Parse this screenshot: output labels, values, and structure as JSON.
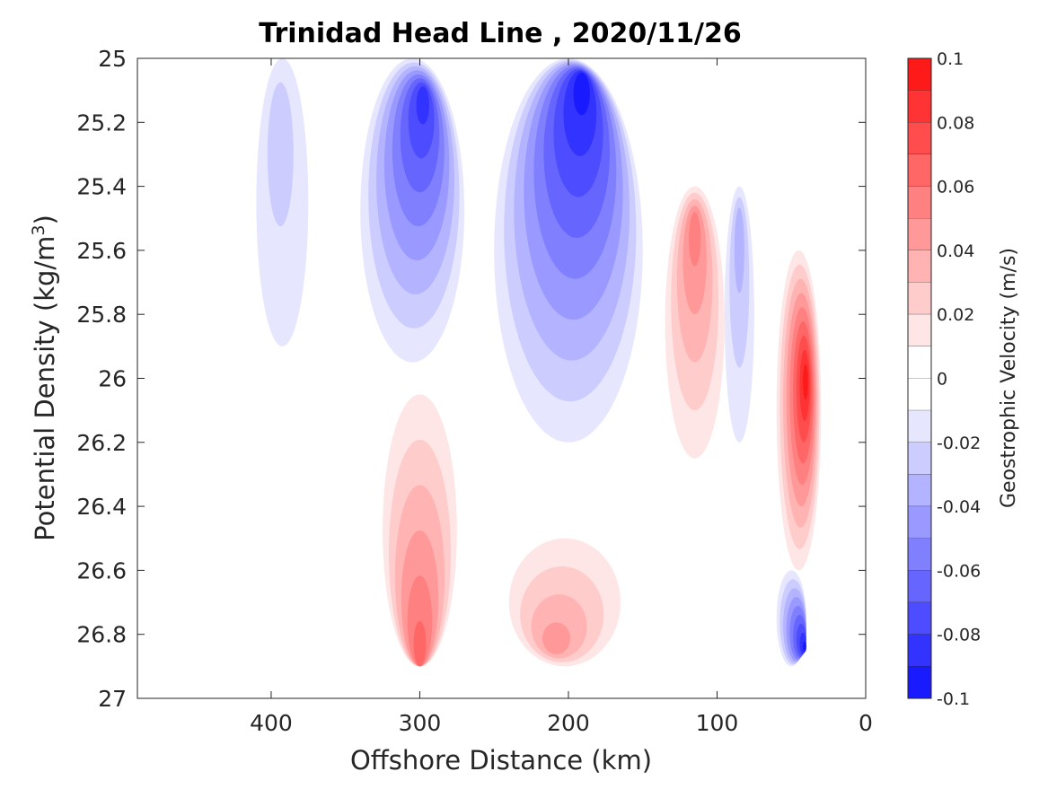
{
  "chart_data": {
    "type": "contour",
    "title": "Trinidad Head Line , 2020/11/26",
    "xlabel": "Offshore Distance (km)",
    "ylabel_main": "Potential Density (kg/m",
    "ylabel_sup": "3",
    "ylabel_tail": ")",
    "xlim": [
      490,
      0
    ],
    "ylim": [
      25,
      27
    ],
    "x_reversed": true,
    "y_reversed": true,
    "xticks": [
      400,
      300,
      200,
      100,
      0
    ],
    "yticks": [
      25,
      25.2,
      25.4,
      25.6,
      25.8,
      26,
      26.2,
      26.4,
      26.6,
      26.8,
      27
    ],
    "ytick_labels": [
      "25",
      "25.2",
      "25.4",
      "25.6",
      "25.8",
      "26",
      "26.2",
      "26.4",
      "26.6",
      "26.8",
      "27"
    ],
    "colorbar": {
      "label": "Geostrophic Velocity (m/s)",
      "range": [
        -0.1,
        0.1
      ],
      "levels": [
        -0.1,
        -0.09,
        -0.08,
        -0.07,
        -0.06,
        -0.05,
        -0.04,
        -0.03,
        -0.02,
        -0.01,
        0,
        0.01,
        0.02,
        0.03,
        0.04,
        0.05,
        0.06,
        0.07,
        0.08,
        0.09,
        0.1
      ],
      "tick_values": [
        0.1,
        0.08,
        0.06,
        0.04,
        0.02,
        0,
        -0.02,
        -0.04,
        -0.06,
        -0.08,
        -0.1
      ],
      "tick_labels": [
        "0.1",
        "0.08",
        "0.06",
        "0.04",
        "0.02",
        "0",
        "-0.02",
        "-0.04",
        "-0.06",
        "-0.08",
        "-0.1"
      ],
      "colormap": "blue-white-red"
    },
    "features": [
      {
        "kind": "southward jet",
        "center_km": 190,
        "peak_density": 25.05,
        "peak_velocity": -0.09,
        "x_extent_km": [
          250,
          150
        ],
        "density_extent": [
          25.0,
          26.2
        ]
      },
      {
        "kind": "southward jet",
        "center_km": 297,
        "peak_density": 25.1,
        "peak_velocity": -0.08,
        "x_extent_km": [
          340,
          270
        ],
        "density_extent": [
          25.0,
          25.95
        ]
      },
      {
        "kind": "weak southward",
        "center_km": 395,
        "peak_density": 25.15,
        "peak_velocity": -0.02,
        "x_extent_km": [
          410,
          375
        ],
        "density_extent": [
          25.0,
          25.9
        ]
      },
      {
        "kind": "coastal northward jet",
        "center_km": 40,
        "peak_density": 26.0,
        "peak_velocity": 0.09,
        "x_extent_km": [
          60,
          30
        ],
        "density_extent": [
          25.6,
          26.6
        ]
      },
      {
        "kind": "northward",
        "center_km": 115,
        "peak_density": 25.5,
        "peak_velocity": 0.05,
        "x_extent_km": [
          135,
          95
        ],
        "density_extent": [
          25.4,
          26.25
        ]
      },
      {
        "kind": "northward",
        "center_km": 300,
        "peak_density": 26.9,
        "peak_velocity": 0.06,
        "x_extent_km": [
          325,
          275
        ],
        "density_extent": [
          26.05,
          26.9
        ]
      },
      {
        "kind": "northward",
        "center_km": 210,
        "peak_density": 26.85,
        "peak_velocity": 0.04,
        "x_extent_km": [
          240,
          165
        ],
        "density_extent": [
          26.5,
          26.9
        ]
      },
      {
        "kind": "southward",
        "center_km": 40,
        "peak_density": 26.85,
        "peak_velocity": -0.09,
        "x_extent_km": [
          60,
          40
        ],
        "density_extent": [
          26.6,
          26.9
        ]
      },
      {
        "kind": "weak southward",
        "center_km": 85,
        "peak_density": 25.5,
        "peak_velocity": -0.03,
        "x_extent_km": [
          95,
          75
        ],
        "density_extent": [
          25.4,
          26.2
        ]
      }
    ]
  }
}
